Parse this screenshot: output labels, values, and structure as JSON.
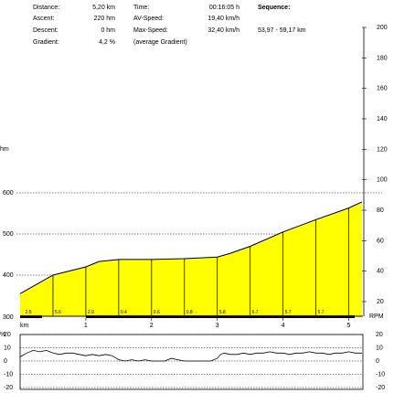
{
  "stats": {
    "distance_label": "Distance:",
    "distance_value": "5,20 km",
    "ascent_label": "Ascent:",
    "ascent_value": "220 hm",
    "descent_label": "Descent:",
    "descent_value": "0 hm",
    "gradient_label": "Gradient:",
    "gradient_value": "4,2 %",
    "time_label": "Time:",
    "time_value": "00:16:05 h",
    "avspeed_label": "AV-Speed:",
    "avspeed_value": "19,40 km/h",
    "maxspeed_label": "Max-Speed:",
    "maxspeed_value": "32,40 km/h",
    "avg_gradient_note": "(average Gradient)",
    "sequence_label": "Sequence:",
    "sequence_value": "53,97 - 59,17 km"
  },
  "colors": {
    "fill": "#ffff00",
    "line": "#000000",
    "grid": "#000000"
  },
  "chart_data": [
    {
      "type": "area",
      "xlabel": "km",
      "ylabel": "hm",
      "x_ticks": [
        "1",
        "2",
        "3",
        "4",
        "5"
      ],
      "xlim": [
        0,
        5.2
      ],
      "ylim": [
        300,
        600
      ],
      "y_ticks": [
        "400",
        "500",
        "600"
      ],
      "y_bottom_label": "300",
      "right_ticks": [
        "200",
        "180",
        "160",
        "140",
        "120",
        "100",
        "80",
        "60",
        "40",
        "20"
      ],
      "right_top_label": "200",
      "right_axis_label": "RPM",
      "x": [
        0,
        0.5,
        1.0,
        1.2,
        1.5,
        2.0,
        2.5,
        3.0,
        3.2,
        3.5,
        4.0,
        4.5,
        5.0,
        5.2
      ],
      "values": [
        355,
        400,
        420,
        433,
        438,
        438,
        440,
        444,
        453,
        470,
        505,
        535,
        563,
        578
      ],
      "dividers": [
        0.5,
        1.0,
        1.5,
        2.0,
        2.5,
        3.0,
        3.5,
        4.0,
        4.5,
        5.0
      ],
      "segment_labels": [
        "2.5",
        "5.6",
        "2.9",
        "0.4",
        "0.6",
        "0.8",
        "5.8",
        "6.7",
        "5.7",
        "5.7"
      ],
      "segment_label_x": [
        0.05,
        0.5,
        1.0,
        1.5,
        2.0,
        2.5,
        3.0,
        3.5,
        4.0,
        4.5
      ]
    },
    {
      "type": "line",
      "ylabel": "%",
      "ylim": [
        -20,
        20
      ],
      "y_ticks": [
        "20",
        "10",
        "0",
        "-10",
        "-20"
      ],
      "right_ticks": [
        "20",
        "10",
        "0",
        "-10",
        "-20"
      ],
      "series": [
        {
          "x": [
            0,
            0.1,
            0.2,
            0.3,
            0.4,
            0.5,
            0.6,
            0.7,
            0.8,
            0.9,
            1.0,
            1.1,
            1.2,
            1.3,
            1.4,
            1.5,
            1.6,
            1.7,
            1.8,
            1.9,
            2.0,
            2.1,
            2.2,
            2.3,
            2.4,
            2.5,
            2.6,
            2.7,
            2.8,
            2.9,
            3.0,
            3.05,
            3.1,
            3.2,
            3.3,
            3.4,
            3.5,
            3.6,
            3.7,
            3.8,
            3.9,
            4.0,
            4.1,
            4.2,
            4.3,
            4.4,
            4.5,
            4.6,
            4.7,
            4.8,
            4.9,
            5.0,
            5.1,
            5.2
          ],
          "values": [
            3,
            6,
            8,
            7,
            8,
            6,
            5,
            6,
            6,
            5,
            4,
            5,
            4,
            5,
            4,
            1,
            0,
            1,
            0,
            1,
            0,
            0,
            0,
            2,
            1,
            0,
            0,
            0,
            0,
            0,
            2,
            5,
            6,
            5,
            5,
            6,
            5,
            6,
            6,
            7,
            6,
            6,
            5,
            6,
            6,
            7,
            6,
            6,
            5,
            6,
            6,
            7,
            6,
            6
          ]
        }
      ]
    }
  ]
}
